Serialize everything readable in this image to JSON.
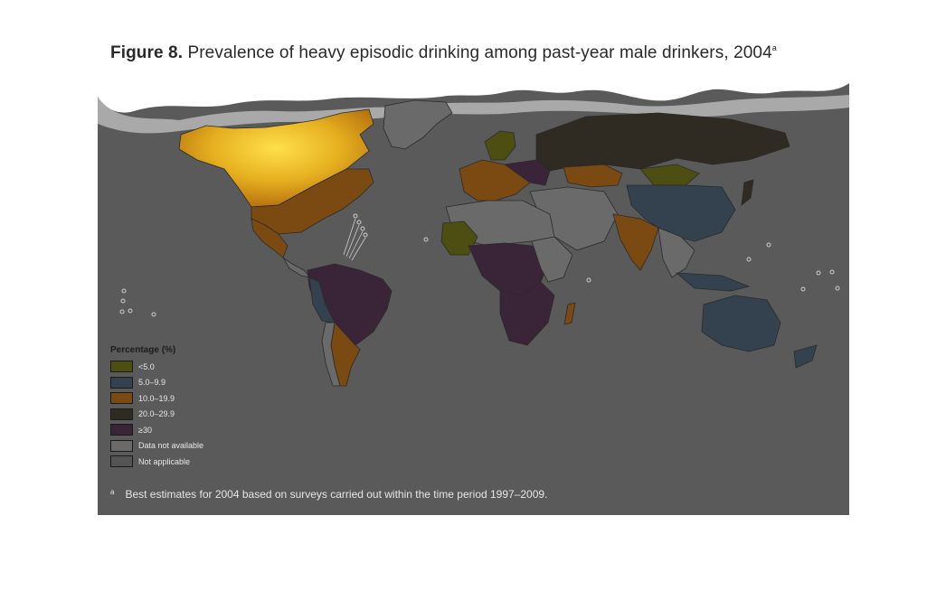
{
  "figure": {
    "label": "Figure 8.",
    "title": "Prevalence of heavy episodic drinking among past-year male drinkers, 2004",
    "title_sup": "a"
  },
  "legend": {
    "title": "Percentage (%)",
    "items": [
      {
        "label": "<5.0",
        "color": "#4d4f12"
      },
      {
        "label": "5.0–9.9",
        "color": "#34424f"
      },
      {
        "label": "10.0–19.9",
        "color": "#7a4a12"
      },
      {
        "label": "20.0–29.9",
        "color": "#2f2a22"
      },
      {
        "label": "≥30",
        "color": "#3a2438"
      },
      {
        "label": "Data not available",
        "color": "#6a6a6a"
      },
      {
        "label": "Not applicable",
        "color": "#545454"
      }
    ]
  },
  "footnote": {
    "mark": "a",
    "text": "Best estimates for 2004 based on surveys carried out within the time period 1997–2009."
  },
  "colors": {
    "ocean": "#5a5a5a",
    "highlight": "#f5c518",
    "cloud": "#ffffff"
  }
}
